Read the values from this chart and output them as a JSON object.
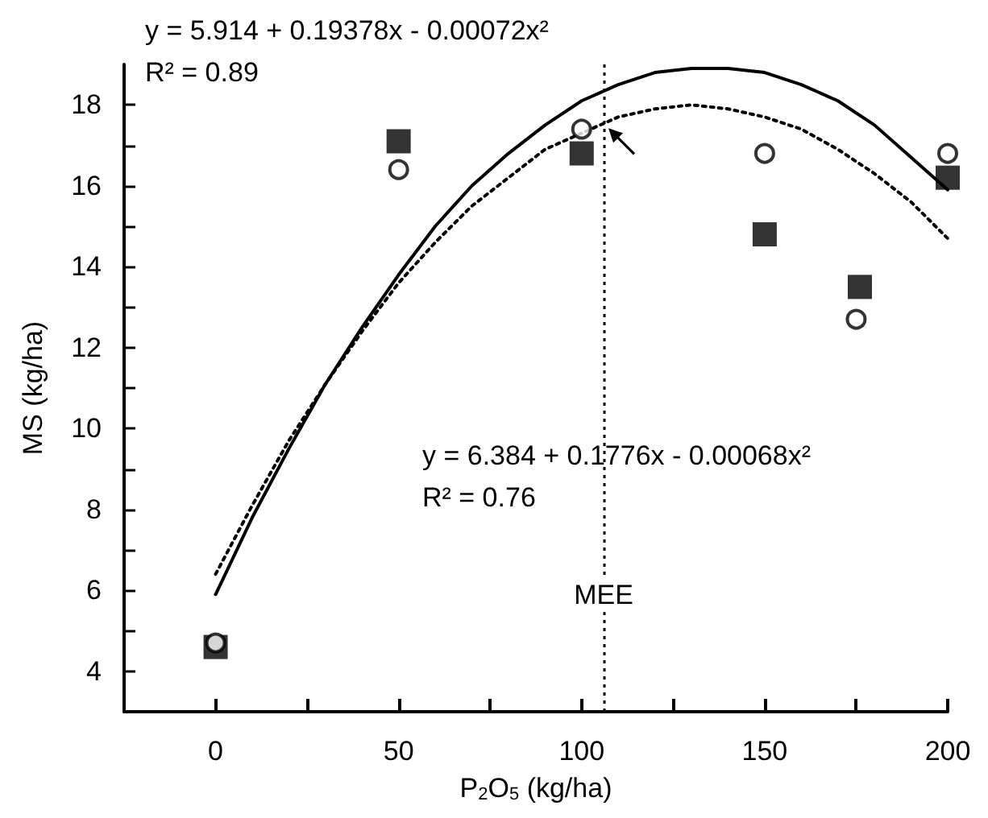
{
  "chart_data": {
    "type": "scatter",
    "xlabel": "P$_{2}$O$_{5}$ (kg/ha)",
    "ylabel": "MS (kg/ha)",
    "xlim": [
      -25,
      200
    ],
    "xticks": [
      0,
      {
        "value": 25,
        "label": null
      },
      50,
      {
        "value": 75,
        "label": null
      },
      100,
      {
        "value": 125,
        "label": null
      },
      150,
      {
        "value": 175,
        "label": null
      },
      200
    ],
    "ylim": [
      3,
      19
    ],
    "yticks": [
      {
        "value": 3,
        "label": null
      },
      4,
      {
        "value": 5,
        "label": null
      },
      6,
      {
        "value": 7,
        "label": null
      },
      8,
      {
        "value": 9,
        "label": null
      },
      10,
      {
        "value": 11,
        "label": null
      },
      12,
      {
        "value": 13,
        "label": null
      },
      14,
      {
        "value": 15,
        "label": null
      },
      16,
      {
        "value": 17,
        "label": null
      },
      18
    ],
    "grid": false,
    "annotations": [
      "y = 5.914 + 0.19378x - 0.00072x² R² = 0.89",
      "y = 6.384 + 0.1776x - 0.00068x² R² = 0.76"
    ],
    "ref_lines": [
      {
        "axis": "x",
        "value": 106,
        "label": "MEE",
        "color": "#000000",
        "line_style": "dotted"
      }
    ],
    "series": [
      {
        "marker": "square",
        "color": "#000000",
        "x": [
          0,
          50,
          100,
          150,
          176,
          200
        ],
        "values": [
          4.6,
          17.1,
          16.8,
          14.8,
          13.5,
          16.2
        ]
      },
      {
        "marker": "circle",
        "color": "#000000",
        "x": [
          0,
          50,
          100,
          150,
          175,
          200
        ],
        "values": [
          4.7,
          16.4,
          17.4,
          16.8,
          12.7,
          16.8
        ]
      },
      {
        "type": "line",
        "marker": "none",
        "line_style": "solid",
        "color": "#000000",
        "x": [
          0,
          10,
          20,
          30,
          40,
          50,
          60,
          70,
          80,
          90,
          100,
          110,
          120,
          130,
          140,
          150,
          160,
          170,
          180,
          190,
          200
        ],
        "values": [
          5.9,
          7.8,
          9.5,
          11.1,
          12.5,
          13.8,
          15.0,
          16.0,
          16.8,
          17.5,
          18.1,
          18.5,
          18.8,
          18.9,
          18.9,
          18.8,
          18.5,
          18.1,
          17.5,
          16.7,
          15.9
        ]
      },
      {
        "type": "line",
        "marker": "none",
        "line_style": "dotted",
        "color": "#000000",
        "x": [
          0,
          10,
          20,
          30,
          40,
          50,
          60,
          70,
          80,
          90,
          100,
          110,
          120,
          130,
          140,
          150,
          160,
          170,
          180,
          190,
          200
        ],
        "values": [
          6.4,
          8.1,
          9.7,
          11.1,
          12.4,
          13.6,
          14.6,
          15.5,
          16.2,
          16.9,
          17.3,
          17.7,
          17.9,
          18.0,
          17.9,
          17.7,
          17.4,
          16.9,
          16.3,
          15.6,
          14.7
        ]
      }
    ]
  }
}
